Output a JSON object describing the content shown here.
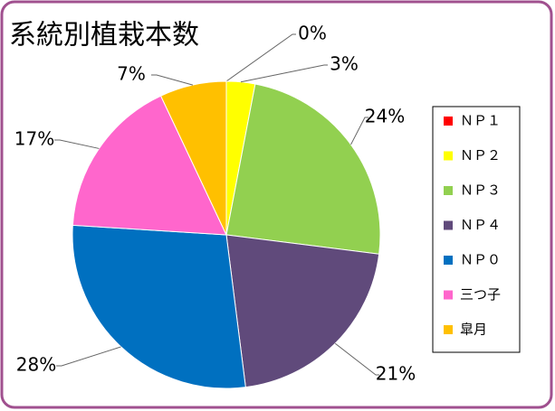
{
  "chart_data": {
    "type": "pie",
    "title": "系統別植栽本数",
    "categories": [
      "ＮＰ１",
      "ＮＰ２",
      "ＮＰ３",
      "ＮＰ４",
      "ＮＰ０",
      "三つ子",
      "皐月"
    ],
    "values": [
      0,
      3,
      24,
      21,
      28,
      17,
      7
    ],
    "value_labels": [
      "0%",
      "3%",
      "24%",
      "21%",
      "28%",
      "17%",
      "7%"
    ],
    "colors": [
      "#ff0000",
      "#ffff00",
      "#92d050",
      "#604a7b",
      "#0070c0",
      "#ff66cc",
      "#ffc000"
    ],
    "legend": "right"
  }
}
